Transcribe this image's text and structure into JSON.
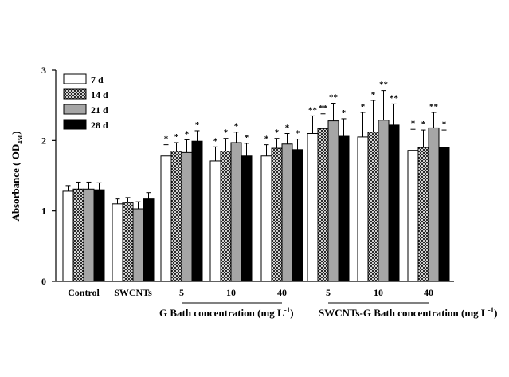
{
  "chart_data": {
    "type": "bar",
    "ylabel": "Absorbance ( OD",
    "ylabel_sub": "450",
    "ylabel_end": ")",
    "ylim": [
      0,
      3
    ],
    "yticks": [
      "0",
      "1",
      "2",
      "3"
    ],
    "categories": [
      "Control",
      "SWCNTs",
      "5",
      "10",
      "40",
      "5",
      "10",
      "40"
    ],
    "group_labels": [
      {
        "text": "G Bath concentration (mg L",
        "sup": "-1",
        "end": ")"
      },
      {
        "text": "SWCNTs-G Bath concentration (mg L",
        "sup": "-1",
        "end": ")"
      }
    ],
    "legend_position": "top-left",
    "series": [
      {
        "name": "7 d",
        "fill": "white",
        "values": [
          1.28,
          1.1,
          1.78,
          1.71,
          1.78,
          2.1,
          2.05,
          1.86
        ],
        "errors": [
          0.08,
          0.07,
          0.16,
          0.2,
          0.16,
          0.25,
          0.35,
          0.3
        ],
        "marks": [
          "",
          "",
          "*",
          "*",
          "*",
          "**",
          "*",
          "*"
        ]
      },
      {
        "name": "14 d",
        "fill": "hatch",
        "values": [
          1.31,
          1.12,
          1.85,
          1.85,
          1.89,
          2.17,
          2.12,
          1.9
        ],
        "errors": [
          0.1,
          0.07,
          0.12,
          0.18,
          0.14,
          0.21,
          0.45,
          0.25
        ],
        "marks": [
          "",
          "",
          "*",
          "*",
          "*",
          "**",
          "*",
          "*"
        ]
      },
      {
        "name": "21 d",
        "fill": "gray",
        "values": [
          1.31,
          1.03,
          1.83,
          1.97,
          1.95,
          2.28,
          2.29,
          2.18
        ],
        "errors": [
          0.1,
          0.1,
          0.18,
          0.15,
          0.15,
          0.25,
          0.42,
          0.22
        ],
        "marks": [
          "",
          "",
          "*",
          "*",
          "*",
          "**",
          "**",
          "**"
        ]
      },
      {
        "name": "28 d",
        "fill": "black",
        "values": [
          1.3,
          1.17,
          1.99,
          1.78,
          1.87,
          2.06,
          2.22,
          1.9
        ],
        "errors": [
          0.1,
          0.09,
          0.15,
          0.18,
          0.15,
          0.25,
          0.3,
          0.25
        ],
        "marks": [
          "",
          "",
          "*",
          "*",
          "*",
          "*",
          "**",
          "*"
        ]
      }
    ]
  }
}
